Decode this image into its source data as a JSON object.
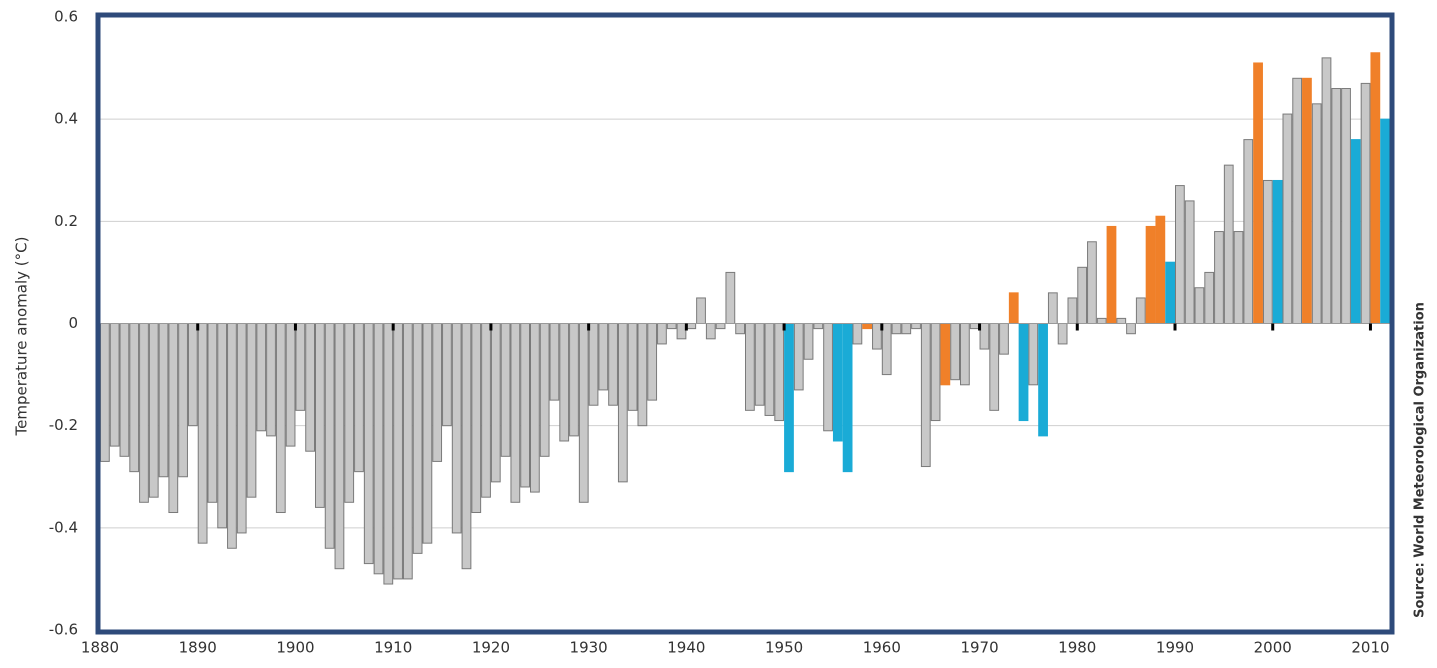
{
  "chart_data": {
    "type": "bar",
    "y_label": "Temperature anomaly (°C)",
    "source": "Source: World Meteorological Organization",
    "x": [
      1880,
      1881,
      1882,
      1883,
      1884,
      1885,
      1886,
      1887,
      1888,
      1889,
      1890,
      1891,
      1892,
      1893,
      1894,
      1895,
      1896,
      1897,
      1898,
      1899,
      1900,
      1901,
      1902,
      1903,
      1904,
      1905,
      1906,
      1907,
      1908,
      1909,
      1910,
      1911,
      1912,
      1913,
      1914,
      1915,
      1916,
      1917,
      1918,
      1919,
      1920,
      1921,
      1922,
      1923,
      1924,
      1925,
      1926,
      1927,
      1928,
      1929,
      1930,
      1931,
      1932,
      1933,
      1934,
      1935,
      1936,
      1937,
      1938,
      1939,
      1940,
      1941,
      1942,
      1943,
      1944,
      1945,
      1946,
      1947,
      1948,
      1949,
      1950,
      1951,
      1952,
      1953,
      1954,
      1955,
      1956,
      1957,
      1958,
      1959,
      1960,
      1961,
      1962,
      1963,
      1964,
      1965,
      1966,
      1967,
      1968,
      1969,
      1970,
      1971,
      1972,
      1973,
      1974,
      1975,
      1976,
      1977,
      1978,
      1979,
      1980,
      1981,
      1982,
      1983,
      1984,
      1985,
      1986,
      1987,
      1988,
      1989,
      1990,
      1991,
      1992,
      1993,
      1994,
      1995,
      1996,
      1997,
      1998,
      1999,
      2000,
      2001,
      2002,
      2003,
      2004,
      2005,
      2006,
      2007,
      2008,
      2009,
      2010,
      2011
    ],
    "values": [
      -0.27,
      -0.24,
      -0.26,
      -0.29,
      -0.35,
      -0.34,
      -0.3,
      -0.37,
      -0.3,
      -0.2,
      -0.43,
      -0.35,
      -0.4,
      -0.44,
      -0.41,
      -0.34,
      -0.21,
      -0.22,
      -0.37,
      -0.24,
      -0.17,
      -0.25,
      -0.36,
      -0.44,
      -0.48,
      -0.35,
      -0.29,
      -0.47,
      -0.49,
      -0.51,
      -0.5,
      -0.5,
      -0.45,
      -0.43,
      -0.27,
      -0.2,
      -0.41,
      -0.48,
      -0.37,
      -0.34,
      -0.31,
      -0.26,
      -0.35,
      -0.32,
      -0.33,
      -0.26,
      -0.15,
      -0.23,
      -0.22,
      -0.35,
      -0.16,
      -0.13,
      -0.16,
      -0.31,
      -0.17,
      -0.2,
      -0.15,
      -0.04,
      -0.01,
      -0.03,
      -0.01,
      0.05,
      -0.03,
      -0.01,
      0.1,
      -0.02,
      -0.17,
      -0.16,
      -0.18,
      -0.19,
      -0.29,
      -0.13,
      -0.07,
      -0.01,
      -0.21,
      -0.23,
      -0.29,
      -0.04,
      -0.01,
      -0.05,
      -0.1,
      -0.02,
      -0.02,
      -0.01,
      -0.28,
      -0.19,
      -0.12,
      -0.11,
      -0.12,
      -0.01,
      -0.05,
      -0.17,
      -0.06,
      0.06,
      -0.19,
      -0.12,
      -0.22,
      0.06,
      -0.04,
      0.05,
      0.11,
      0.16,
      0.01,
      0.19,
      0.01,
      -0.02,
      0.05,
      0.19,
      0.21,
      0.12,
      0.27,
      0.24,
      0.07,
      0.1,
      0.18,
      0.31,
      0.18,
      0.36,
      0.51,
      0.28,
      0.28,
      0.41,
      0.48,
      0.48,
      0.43,
      0.52,
      0.46,
      0.46,
      0.36,
      0.47,
      0.53,
      0.4
    ],
    "colors": [
      "#c8c8c8",
      "#c8c8c8",
      "#c8c8c8",
      "#c8c8c8",
      "#c8c8c8",
      "#c8c8c8",
      "#c8c8c8",
      "#c8c8c8",
      "#c8c8c8",
      "#c8c8c8",
      "#c8c8c8",
      "#c8c8c8",
      "#c8c8c8",
      "#c8c8c8",
      "#c8c8c8",
      "#c8c8c8",
      "#c8c8c8",
      "#c8c8c8",
      "#c8c8c8",
      "#c8c8c8",
      "#c8c8c8",
      "#c8c8c8",
      "#c8c8c8",
      "#c8c8c8",
      "#c8c8c8",
      "#c8c8c8",
      "#c8c8c8",
      "#c8c8c8",
      "#c8c8c8",
      "#c8c8c8",
      "#c8c8c8",
      "#c8c8c8",
      "#c8c8c8",
      "#c8c8c8",
      "#c8c8c8",
      "#c8c8c8",
      "#c8c8c8",
      "#c8c8c8",
      "#c8c8c8",
      "#c8c8c8",
      "#c8c8c8",
      "#c8c8c8",
      "#c8c8c8",
      "#c8c8c8",
      "#c8c8c8",
      "#c8c8c8",
      "#c8c8c8",
      "#c8c8c8",
      "#c8c8c8",
      "#c8c8c8",
      "#c8c8c8",
      "#c8c8c8",
      "#c8c8c8",
      "#c8c8c8",
      "#c8c8c8",
      "#c8c8c8",
      "#c8c8c8",
      "#c8c8c8",
      "#c8c8c8",
      "#c8c8c8",
      "#c8c8c8",
      "#c8c8c8",
      "#c8c8c8",
      "#c8c8c8",
      "#c8c8c8",
      "#c8c8c8",
      "#c8c8c8",
      "#c8c8c8",
      "#c8c8c8",
      "#c8c8c8",
      "#1aabd6",
      "#c8c8c8",
      "#c8c8c8",
      "#c8c8c8",
      "#c8c8c8",
      "#1aabd6",
      "#1aabd6",
      "#c8c8c8",
      "#f08029",
      "#c8c8c8",
      "#c8c8c8",
      "#c8c8c8",
      "#c8c8c8",
      "#c8c8c8",
      "#c8c8c8",
      "#c8c8c8",
      "#f08029",
      "#c8c8c8",
      "#c8c8c8",
      "#c8c8c8",
      "#c8c8c8",
      "#c8c8c8",
      "#c8c8c8",
      "#f08029",
      "#1aabd6",
      "#c8c8c8",
      "#1aabd6",
      "#c8c8c8",
      "#c8c8c8",
      "#c8c8c8",
      "#c8c8c8",
      "#c8c8c8",
      "#c8c8c8",
      "#f08029",
      "#c8c8c8",
      "#c8c8c8",
      "#c8c8c8",
      "#f08029",
      "#f08029",
      "#1aabd6",
      "#c8c8c8",
      "#c8c8c8",
      "#c8c8c8",
      "#c8c8c8",
      "#c8c8c8",
      "#c8c8c8",
      "#c8c8c8",
      "#c8c8c8",
      "#f08029",
      "#c8c8c8",
      "#1aabd6",
      "#c8c8c8",
      "#c8c8c8",
      "#f08029",
      "#c8c8c8",
      "#c8c8c8",
      "#c8c8c8",
      "#c8c8c8",
      "#1aabd6",
      "#c8c8c8",
      "#f08029",
      "#1aabd6"
    ],
    "xlim": [
      1880,
      2012
    ],
    "xticks": [
      1880,
      1890,
      1900,
      1910,
      1920,
      1930,
      1940,
      1950,
      1960,
      1970,
      1980,
      1990,
      2000,
      2010
    ],
    "ylim": [
      -0.6,
      0.6
    ],
    "yticks": [
      0.6,
      0.4,
      0.2,
      0,
      -0.2,
      -0.4,
      -0.6
    ],
    "grid": true
  }
}
